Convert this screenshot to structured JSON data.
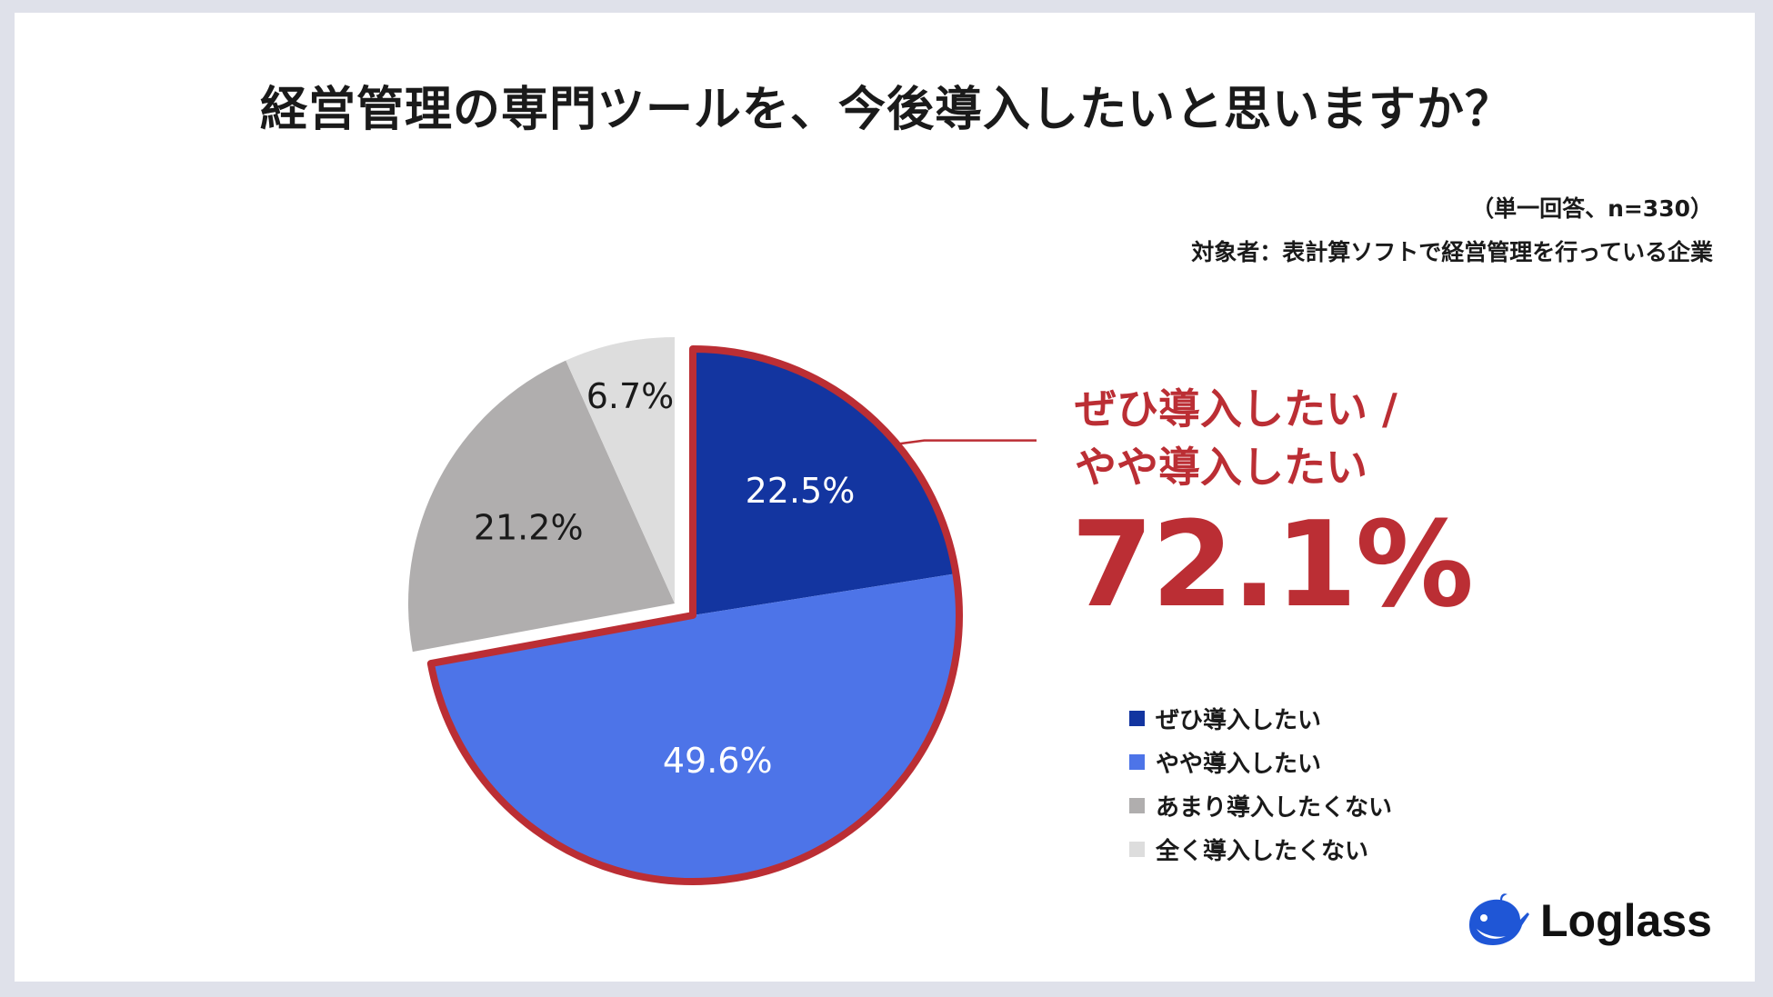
{
  "title": "経営管理の専門ツールを、今後導入したいと思いますか？",
  "note_response": "（単一回答、n=330）",
  "note_target": "対象者：表計算ソフトで経営管理を行っている企業",
  "callout": {
    "label_line1": "ぜひ導入したい /",
    "label_line2": "やや導入したい",
    "value": "72.1%"
  },
  "logo": {
    "text": "Loglass",
    "icon": "whale-icon"
  },
  "colors": {
    "accent_red": "#bb2e34",
    "slice_1": "#1335a0",
    "slice_2": "#4d74e8",
    "slice_3": "#b0aeae",
    "slice_4": "#dddddd"
  },
  "chart_data": {
    "type": "pie",
    "title": "経営管理の専門ツールを、今後導入したいと思いますか？",
    "legend_position": "right",
    "slices": [
      {
        "label": "ぜひ導入したい",
        "value": 22.5,
        "value_label": "22.5%",
        "color": "#1335a0",
        "text_color": "#ffffff",
        "highlighted": true
      },
      {
        "label": "やや導入したい",
        "value": 49.6,
        "value_label": "49.6%",
        "color": "#4d74e8",
        "text_color": "#ffffff",
        "highlighted": true
      },
      {
        "label": "あまり導入したくない",
        "value": 21.2,
        "value_label": "21.2%",
        "color": "#b0aeae",
        "text_color": "#1a1a1a",
        "highlighted": false
      },
      {
        "label": "全く導入したくない",
        "value": 6.7,
        "value_label": "6.7%",
        "color": "#dddddd",
        "text_color": "#1a1a1a",
        "highlighted": false
      }
    ]
  }
}
